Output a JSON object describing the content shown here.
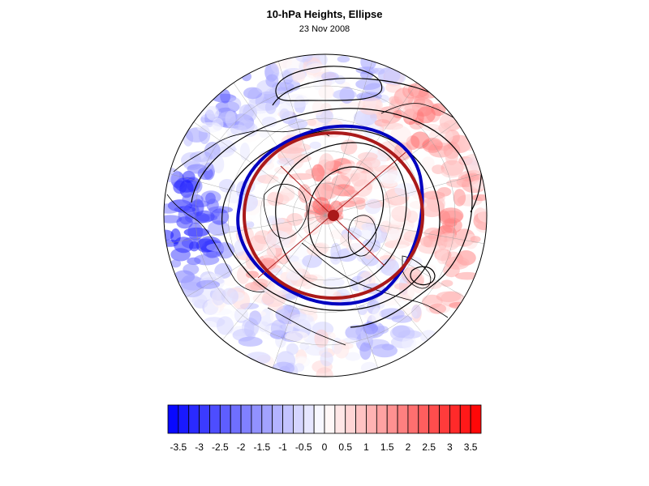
{
  "title": "10-hPa Heights, Ellipse",
  "subtitle": "23 Nov 2008",
  "colors": {
    "negative": "#0000ff",
    "positive": "#ff0000",
    "ellipse": "#aa1a1a",
    "vortex_edge": "#0000c0",
    "contour": "#000000"
  },
  "colorbar": {
    "min": -3.75,
    "max": 3.75,
    "step": 0.25,
    "labels": [
      "-3.5",
      "-3",
      "-2.5",
      "-2",
      "-1.5",
      "-1",
      "-0.5",
      "0",
      "0.5",
      "1",
      "1.5",
      "2",
      "2.5",
      "3",
      "3.5"
    ],
    "label_values": [
      -3.5,
      -3,
      -2.5,
      -2,
      -1.5,
      -1,
      -0.5,
      0,
      0.5,
      1,
      1.5,
      2,
      2.5,
      3,
      3.5
    ]
  },
  "map": {
    "projection": "north-polar-stereographic",
    "vortex_center": {
      "lat": 81,
      "lon": 170
    },
    "ellipse_markers": [
      "major-axis",
      "minor-axis",
      "center"
    ]
  }
}
